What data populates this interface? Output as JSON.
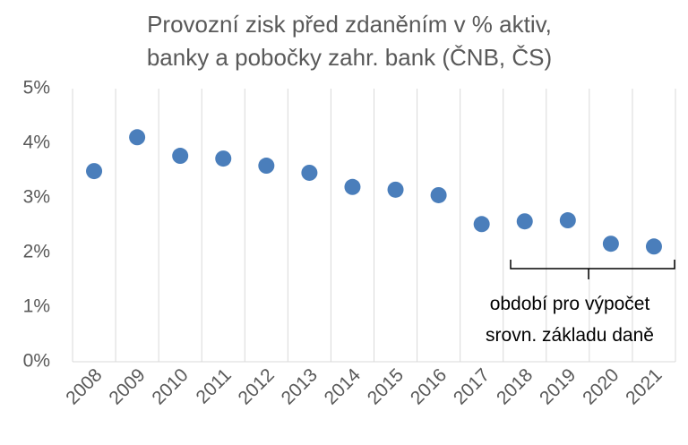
{
  "chart_data": {
    "type": "dot",
    "title": [
      "Provozní zisk před zdaněním v % aktiv,",
      "banky a pobočky zahr. bank (ČNB, ČS)"
    ],
    "categories": [
      "2008",
      "2009",
      "2010",
      "2011",
      "2012",
      "2013",
      "2014",
      "2015",
      "2016",
      "2017",
      "2018",
      "2019",
      "2020",
      "2021"
    ],
    "values": [
      3.49,
      4.11,
      3.77,
      3.72,
      3.59,
      3.46,
      3.2,
      3.15,
      3.05,
      2.52,
      2.57,
      2.59,
      2.16,
      2.11
    ],
    "color": "#4a7ebb",
    "ylim": [
      0,
      5
    ],
    "yticks": [
      {
        "value": 0,
        "label": "0%"
      },
      {
        "value": 1,
        "label": "1%"
      },
      {
        "value": 2,
        "label": "2%"
      },
      {
        "value": 3,
        "label": "3%"
      },
      {
        "value": 4,
        "label": "4%"
      },
      {
        "value": 5,
        "label": "5%"
      }
    ],
    "grid": true,
    "annotation": [
      "období pro výpočet",
      "srovn. základu daně"
    ]
  }
}
